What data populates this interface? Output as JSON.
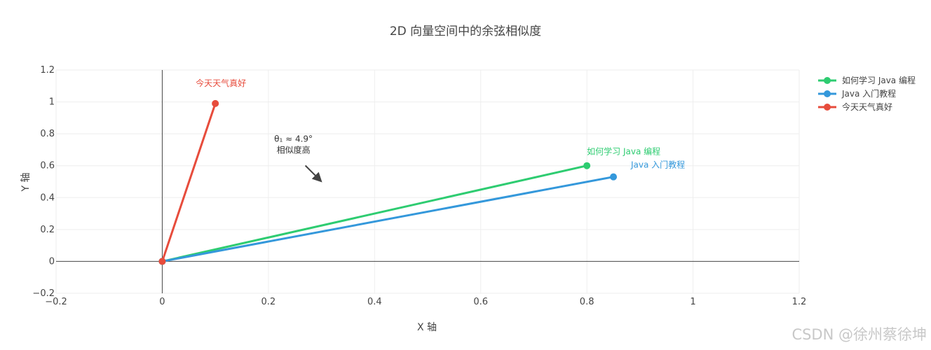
{
  "chart_data": {
    "type": "line",
    "title": "2D 向量空间中的余弦相似度",
    "xlabel": "X 轴",
    "ylabel": "Y 轴",
    "xlim": [
      -0.2,
      1.2
    ],
    "ylim": [
      -0.2,
      1.2
    ],
    "xticks": [
      "−0.2",
      "0",
      "0.2",
      "0.4",
      "0.6",
      "0.8",
      "1",
      "1.2"
    ],
    "xtick_values": [
      -0.2,
      0,
      0.2,
      0.4,
      0.6,
      0.8,
      1,
      1.2
    ],
    "yticks": [
      "−0.2",
      "0",
      "0.2",
      "0.4",
      "0.6",
      "0.8",
      "1",
      "1.2"
    ],
    "ytick_values": [
      -0.2,
      0,
      0.2,
      0.4,
      0.6,
      0.8,
      1,
      1.2
    ],
    "grid": true,
    "legend_position": "top-right",
    "series": [
      {
        "name": "如何学习 Java 编程",
        "color": "#2ecc71",
        "points": [
          [
            0,
            0
          ],
          [
            0.8,
            0.6
          ]
        ],
        "label": "如何学习 Java 编程"
      },
      {
        "name": "Java 入门教程",
        "color": "#3498db",
        "points": [
          [
            0,
            0
          ],
          [
            0.85,
            0.53
          ]
        ],
        "label": "Java 入门教程"
      },
      {
        "name": "今天天气真好",
        "color": "#e74c3c",
        "points": [
          [
            0,
            0
          ],
          [
            0.1,
            0.99
          ]
        ],
        "label": "今天天气真好"
      }
    ],
    "annotation": {
      "lines": [
        "θ₁ ≈ 4.9°",
        "相似度高"
      ],
      "arrow_to": [
        0.3,
        0.5
      ]
    }
  },
  "watermark": "CSDN @徐州蔡徐坤"
}
